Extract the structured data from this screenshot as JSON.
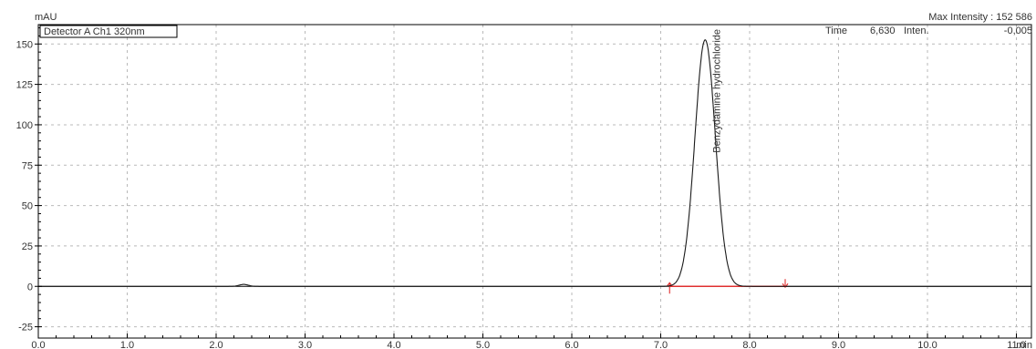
{
  "chart_data": {
    "type": "line",
    "y_unit": "mAU",
    "x_unit": "min",
    "max_intensity_text": "Max Intensity : 152 586",
    "detector_label": "Detector A Ch1 320nm",
    "readout": {
      "time_label": "Time",
      "time_value": "6,630",
      "inten_label": "Inten.",
      "inten_value": "-0,005"
    },
    "xlim": [
      0,
      12
    ],
    "ylim": [
      -32,
      162
    ],
    "x_ticks": [
      "0.0",
      "1.0",
      "2.0",
      "3.0",
      "4.0",
      "5.0",
      "6.0",
      "7.0",
      "8.0",
      "9.0",
      "10.0",
      "11.0"
    ],
    "y_ticks": [
      "-25",
      "0",
      "25",
      "50",
      "75",
      "100",
      "125",
      "150"
    ],
    "grid": true,
    "series": [
      {
        "name": "Detector A Ch1 320nm",
        "color": "#1a1a1a",
        "baseline": 0,
        "peaks": [
          {
            "rt": 2.31,
            "height": 1.2,
            "sigma": 0.05
          },
          {
            "rt": 7.5,
            "height": 152.586,
            "sigma": 0.115
          }
        ]
      }
    ],
    "peak_annotations": [
      {
        "label": "Benzydamine hydrochloride",
        "rt": 7.5
      }
    ],
    "integration_baseline": {
      "color": "#e03030",
      "start": 7.1,
      "end": 8.4,
      "value": 0
    }
  }
}
